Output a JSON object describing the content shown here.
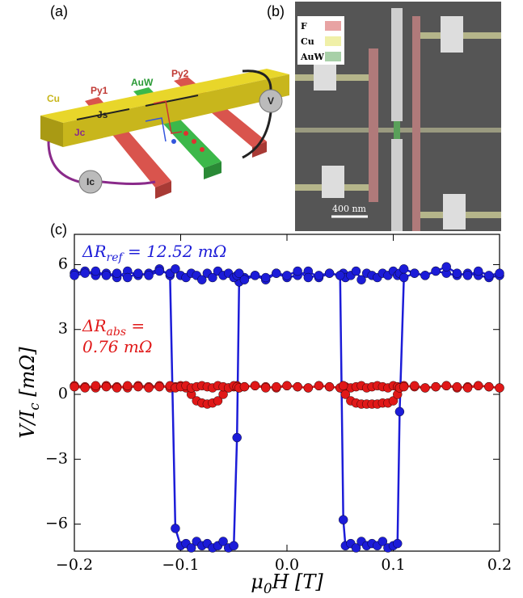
{
  "panel_a": {
    "label": "(a)",
    "cu": "Cu",
    "js": "Js",
    "jc": "Jc",
    "py1": "Py1",
    "auw": "AuW",
    "py2": "Py2",
    "v": "V",
    "ic": "Ic"
  },
  "panel_b": {
    "label": "(b)",
    "legend": [
      {
        "name": "F",
        "color": "#e8a3a3"
      },
      {
        "name": "Cu",
        "color": "#f0f0a8"
      },
      {
        "name": "AuW",
        "color": "#a8d0a8"
      }
    ],
    "scale_bar": "400 nm"
  },
  "chart_data": {
    "type": "line",
    "panel_label": "(c)",
    "x_label": [
      "μ",
      "0",
      "H [T]"
    ],
    "y_label": [
      "V/I",
      "c",
      " [mΩ]"
    ],
    "annotations": [
      {
        "color": "#1c1cd8",
        "lines": [
          [
            "ΔR",
            "ref",
            " = 12.52 mΩ"
          ]
        ]
      },
      {
        "color": "#e01818",
        "lines": [
          [
            "ΔR",
            "abs",
            " ="
          ],
          [
            "0.76 mΩ"
          ]
        ]
      }
    ],
    "x": [
      -0.2,
      -0.19,
      -0.18,
      -0.17,
      -0.16,
      -0.15,
      -0.14,
      -0.13,
      -0.12,
      -0.11,
      -0.105,
      -0.1,
      -0.095,
      -0.09,
      -0.085,
      -0.08,
      -0.075,
      -0.07,
      -0.065,
      -0.06,
      -0.055,
      -0.05,
      -0.047,
      -0.045,
      -0.04,
      -0.03,
      -0.02,
      -0.01,
      0,
      0.01,
      0.02,
      0.03,
      0.04,
      0.05,
      0.053,
      0.055,
      0.06,
      0.065,
      0.07,
      0.075,
      0.08,
      0.085,
      0.09,
      0.095,
      0.1,
      0.104,
      0.106,
      0.11,
      0.12,
      0.13,
      0.14,
      0.15,
      0.16,
      0.17,
      0.18,
      0.19,
      0.2
    ],
    "series": [
      {
        "color": "#1c1cd8",
        "values": [
          5.6,
          5.7,
          5.5,
          5.6,
          5.4,
          5.7,
          5.5,
          5.6,
          5.8,
          5.5,
          -6.2,
          -7.0,
          -6.9,
          -7.1,
          -6.8,
          -7.0,
          -6.9,
          -7.1,
          -7.0,
          -6.8,
          -7.1,
          -7.0,
          -2.0,
          5.2,
          5.4,
          5.5,
          5.3,
          5.6,
          5.4,
          5.5,
          5.7,
          5.4,
          5.6,
          5.5,
          5.6,
          5.4,
          5.5,
          5.7,
          5.3,
          5.6,
          5.5,
          5.4,
          5.6,
          5.5,
          5.7,
          5.5,
          5.6,
          5.8,
          5.6,
          5.5,
          5.7,
          5.6,
          5.5,
          5.6,
          5.5,
          5.4,
          5.5
        ]
      },
      {
        "color": "#1c1cd8",
        "values": [
          5.5,
          5.6,
          5.7,
          5.5,
          5.6,
          5.4,
          5.6,
          5.5,
          5.7,
          5.6,
          5.8,
          5.5,
          5.4,
          5.6,
          5.5,
          5.3,
          5.6,
          5.4,
          5.7,
          5.5,
          5.6,
          5.4,
          5.5,
          5.6,
          5.3,
          5.5,
          5.4,
          5.6,
          5.5,
          5.7,
          5.4,
          5.5,
          5.6,
          5.5,
          -5.8,
          -7.0,
          -6.9,
          -7.1,
          -6.8,
          -7.0,
          -6.9,
          -7.0,
          -6.8,
          -7.1,
          -7.0,
          -6.9,
          -0.8,
          5.4,
          5.6,
          5.5,
          5.7,
          5.9,
          5.6,
          5.5,
          5.7,
          5.5,
          5.6
        ]
      },
      {
        "color": "#e01818",
        "values": [
          0.4,
          0.35,
          0.3,
          0.4,
          0.35,
          0.3,
          0.4,
          0.35,
          0.4,
          0.3,
          0.35,
          0.4,
          0.3,
          0.0,
          -0.3,
          -0.4,
          -0.45,
          -0.4,
          -0.3,
          0.0,
          0.3,
          0.35,
          0.4,
          0.3,
          0.35,
          0.4,
          0.35,
          0.3,
          0.4,
          0.35,
          0.3,
          0.4,
          0.35,
          0.3,
          0.4,
          0.35,
          0.3,
          0.35,
          0.4,
          0.3,
          0.35,
          0.4,
          0.35,
          0.3,
          0.4,
          0.35,
          0.3,
          0.4,
          0.35,
          0.3,
          0.35,
          0.4,
          0.3,
          0.35,
          0.4,
          0.35,
          0.3
        ]
      },
      {
        "color": "#e01818",
        "values": [
          0.35,
          0.3,
          0.4,
          0.35,
          0.3,
          0.4,
          0.35,
          0.3,
          0.35,
          0.4,
          0.3,
          0.35,
          0.4,
          0.3,
          0.35,
          0.4,
          0.35,
          0.3,
          0.4,
          0.35,
          0.3,
          0.4,
          0.35,
          0.3,
          0.35,
          0.4,
          0.3,
          0.35,
          0.4,
          0.35,
          0.3,
          0.4,
          0.35,
          0.3,
          0.4,
          0.0,
          -0.3,
          -0.4,
          -0.45,
          -0.45,
          -0.45,
          -0.45,
          -0.4,
          -0.4,
          -0.3,
          0.0,
          0.3,
          0.35,
          0.4,
          0.3,
          0.35,
          0.4,
          0.35,
          0.3,
          0.4,
          0.35,
          0.3
        ]
      }
    ],
    "xlim": [
      -0.2,
      0.2
    ],
    "xticks": [
      {
        "value": -0.2,
        "label": "−0.2"
      },
      {
        "value": -0.1,
        "label": "−0.1"
      },
      {
        "value": 0,
        "label": "0.0"
      },
      0.1,
      0.2
    ],
    "ylim": [
      -7.25,
      7.4
    ],
    "yticks": [
      {
        "value": -6,
        "label": "−6"
      },
      {
        "value": -3,
        "label": "−3"
      },
      0,
      3,
      6
    ],
    "grid": false
  }
}
